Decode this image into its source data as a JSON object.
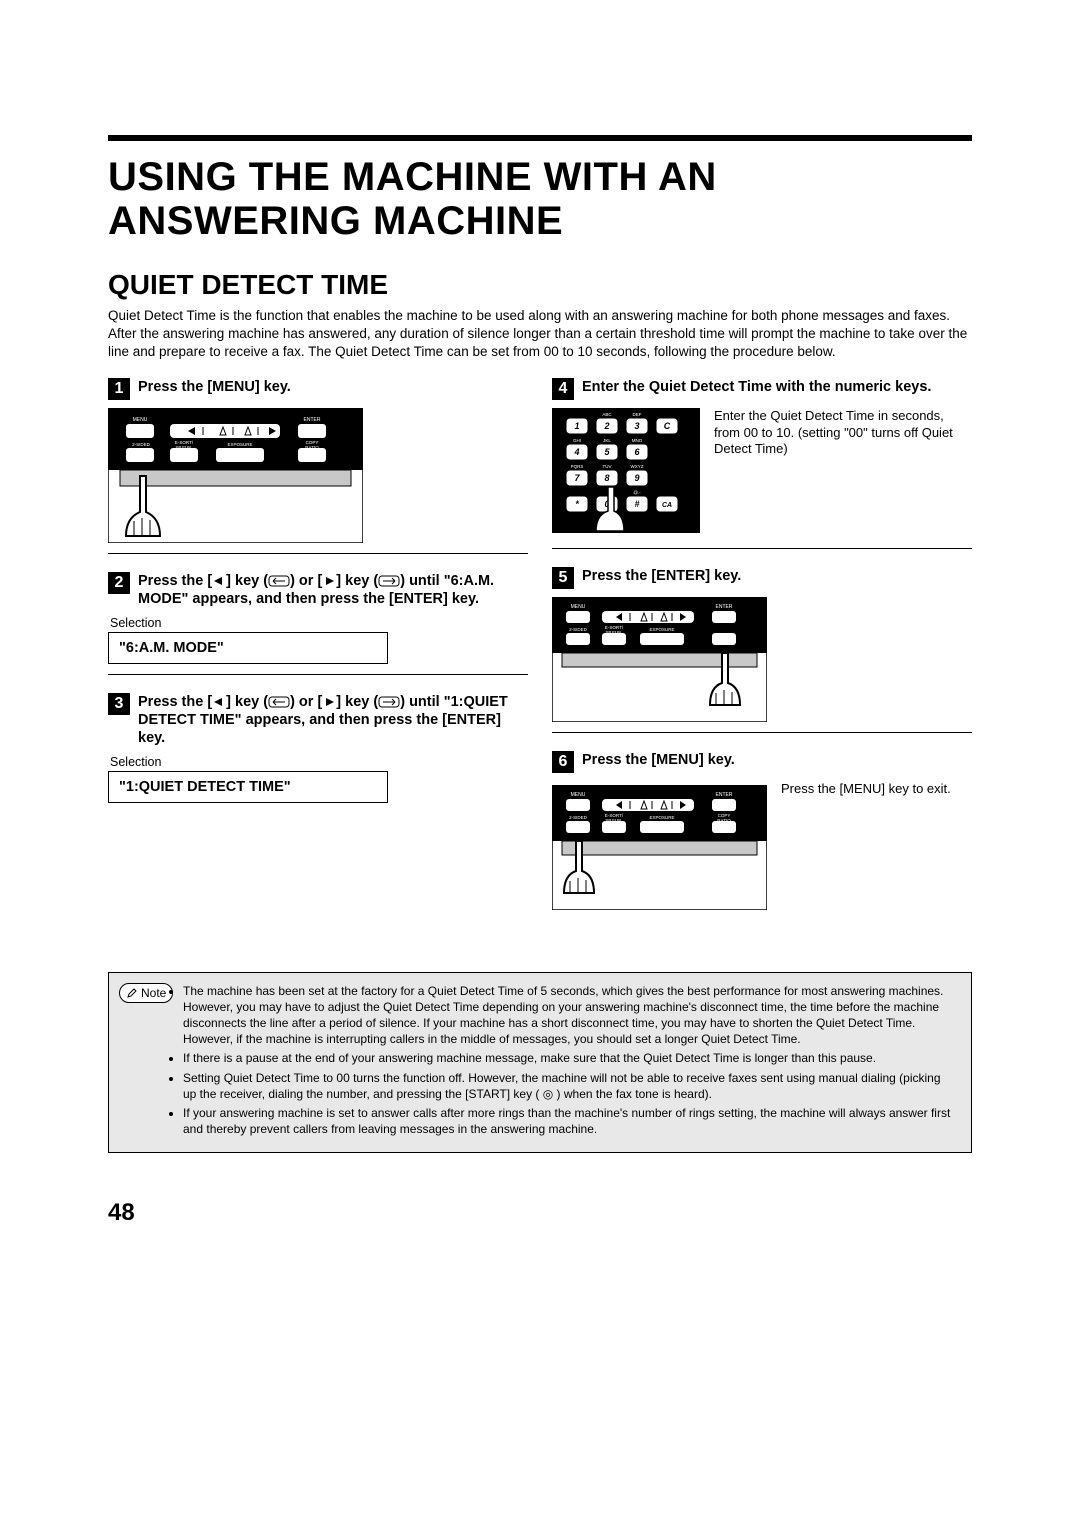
{
  "title": "USING THE MACHINE WITH AN ANSWERING MACHINE",
  "section_title": "QUIET DETECT TIME",
  "intro": "Quiet Detect Time is the function that enables the machine to be used along with an answering machine for both phone messages and faxes. After the answering machine has answered, any duration of silence longer than a certain threshold time will prompt the machine to take over the line and prepare to receive a fax. The Quiet Detect Time can be set from 00 to 10 seconds, following the procedure below.",
  "steps": {
    "1": {
      "num": "1",
      "text": "Press the [MENU] key."
    },
    "2": {
      "num": "2",
      "pre": "Press the [",
      "mid1": "] key (",
      "mid2": ") or [",
      "mid3": "] key (",
      "post": ") until \"6:A.M. MODE\" appears, and then press the [ENTER] key."
    },
    "3": {
      "num": "3",
      "pre": "Press the [",
      "mid1": "] key (",
      "mid2": ") or [",
      "mid3": "] key (",
      "post": ") until \"1:QUIET DETECT TIME\" appears, and then press the [ENTER] key."
    },
    "4": {
      "num": "4",
      "text": "Enter the Quiet Detect Time with the numeric keys.",
      "aside": "Enter the Quiet Detect Time in seconds, from 00 to 10. (setting \"00\" turns off Quiet Detect Time)"
    },
    "5": {
      "num": "5",
      "text": "Press the [ENTER] key."
    },
    "6": {
      "num": "6",
      "text": "Press the [MENU] key.",
      "aside": "Press the [MENU] key to exit."
    }
  },
  "selection_label": "Selection",
  "display": {
    "am_mode": "\"6:A.M. MODE\"",
    "quiet_detect": "\"1:QUIET DETECT TIME\""
  },
  "panel_labels": {
    "menu": "MENU",
    "enter": "ENTER",
    "two_sided": "2-SIDED",
    "esort": "E-SORT/\nSP.FUN.",
    "exposure": "EXPOSURE",
    "copy_ratio": "COPY\nRATIO"
  },
  "keypad": {
    "rows": [
      [
        {
          "n": "1",
          "sub": ""
        },
        {
          "n": "2",
          "sub": "ABC"
        },
        {
          "n": "3",
          "sub": "DEF"
        },
        {
          "n": "C",
          "sub": ""
        }
      ],
      [
        {
          "n": "4",
          "sub": "GHI"
        },
        {
          "n": "5",
          "sub": "JKL"
        },
        {
          "n": "6",
          "sub": "MNO"
        },
        {
          "n": "",
          "sub": ""
        }
      ],
      [
        {
          "n": "7",
          "sub": "PQRS"
        },
        {
          "n": "8",
          "sub": "TUV"
        },
        {
          "n": "9",
          "sub": "WXYZ"
        },
        {
          "n": "",
          "sub": ""
        }
      ],
      [
        {
          "n": "*",
          "sub": ""
        },
        {
          "n": "0",
          "sub": ""
        },
        {
          "n": "#",
          "sub": "@.-"
        },
        {
          "n": "CA",
          "sub": ""
        }
      ]
    ]
  },
  "note_label": "Note",
  "notes": [
    "The machine has been set at the factory for a Quiet Detect Time of 5 seconds, which gives the best performance for most answering machines. However, you may have to adjust the Quiet Detect Time depending on your answering machine's disconnect time, the time before the machine disconnects the line after a period of silence. If your machine has a short disconnect time, you may have to shorten the Quiet Detect Time. However, if the machine is interrupting callers in the middle of messages, you should set a longer Quiet Detect Time.",
    "If there is a pause at the end of your answering machine message, make sure that the Quiet Detect Time is longer than this pause.",
    "Setting Quiet Detect Time to 00 turns the function off. However, the machine will not be able to receive faxes sent using manual dialing (picking up the receiver, dialing the number, and pressing the [START] key ( ◎ ) when the fax tone is heard).",
    "If your answering machine is set to answer calls after more rings than the machine's number of rings setting, the machine will always answer first and thereby prevent callers from leaving messages in the answering machine."
  ],
  "page_number": "48"
}
